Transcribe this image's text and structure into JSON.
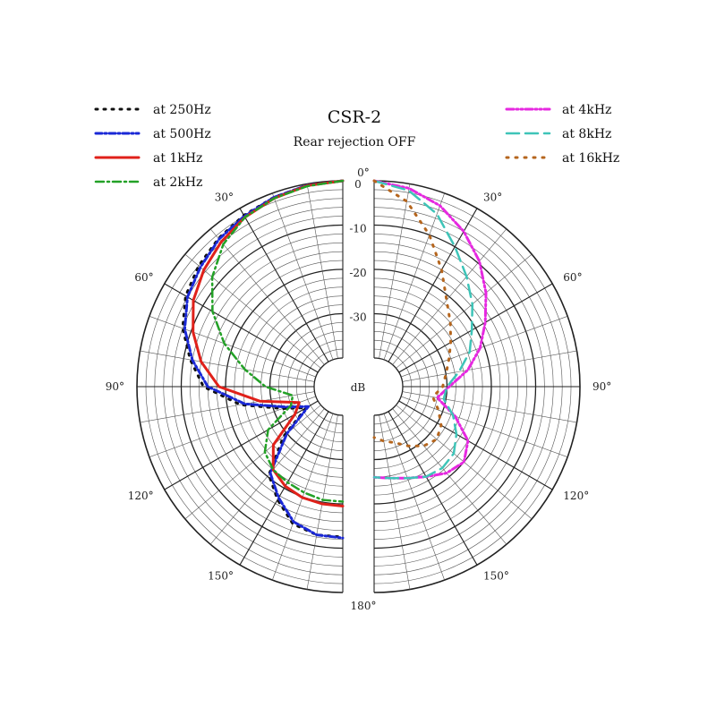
{
  "chart_data": {
    "type": "polar-line",
    "title": "CSR-2",
    "subtitle": "Rear rejection OFF",
    "radial_unit_label": "dB",
    "radial_range": [
      -40,
      0
    ],
    "radial_ticks": [
      {
        "value": 0,
        "label": "0"
      },
      {
        "value": -10,
        "label": "-10"
      },
      {
        "value": -20,
        "label": "-20"
      },
      {
        "value": -30,
        "label": "-30"
      }
    ],
    "angle_ticks": [
      {
        "angle": 0,
        "label": "0°",
        "side": "top"
      },
      {
        "angle": 30,
        "label": "30°",
        "side": "left"
      },
      {
        "angle": 60,
        "label": "60°",
        "side": "left"
      },
      {
        "angle": 90,
        "label": "90°",
        "side": "left"
      },
      {
        "angle": 120,
        "label": "120°",
        "side": "left"
      },
      {
        "angle": 150,
        "label": "150°",
        "side": "left"
      },
      {
        "angle": 180,
        "label": "180°",
        "side": "bottom"
      },
      {
        "angle": 30,
        "label": "30°",
        "side": "right"
      },
      {
        "angle": 60,
        "label": "60°",
        "side": "right"
      },
      {
        "angle": 90,
        "label": "90°",
        "side": "right"
      },
      {
        "angle": 120,
        "label": "120°",
        "side": "right"
      },
      {
        "angle": 150,
        "label": "150°",
        "side": "right"
      }
    ],
    "grid": true,
    "series": [
      {
        "name": "at 250Hz",
        "side": "left",
        "color": "#111111",
        "dash": "2 7",
        "width": 3,
        "angles": [
          0,
          10,
          20,
          30,
          40,
          50,
          60,
          70,
          80,
          90,
          100,
          110,
          120,
          130,
          140,
          150,
          160,
          170,
          180
        ],
        "values": [
          0,
          -0.3,
          -1,
          -1.8,
          -2.8,
          -4,
          -5.5,
          -8,
          -11.5,
          -15,
          -23,
          -32,
          -37,
          -29,
          -20.5,
          -17,
          -13.5,
          -12.5,
          -12.5
        ]
      },
      {
        "name": "at 500Hz",
        "side": "left",
        "color": "#1a28d6",
        "dash": "7 3 2 3",
        "width": 3,
        "angles": [
          0,
          10,
          20,
          30,
          40,
          50,
          60,
          70,
          80,
          90,
          100,
          110,
          120,
          130,
          140,
          150,
          160,
          170,
          180
        ],
        "values": [
          0,
          -0.3,
          -1,
          -2,
          -3,
          -4.5,
          -6,
          -8.5,
          -12,
          -16,
          -24,
          -33,
          -37.5,
          -30,
          -21,
          -17.5,
          -14,
          -12.5,
          -12.3
        ]
      },
      {
        "name": "at 1kHz",
        "side": "left",
        "color": "#e0211a",
        "dash": "",
        "width": 3,
        "angles": [
          0,
          10,
          20,
          30,
          40,
          50,
          60,
          70,
          80,
          90,
          100,
          110,
          120,
          130,
          140,
          150,
          160,
          170,
          180
        ],
        "values": [
          0,
          -0.4,
          -1.2,
          -2.3,
          -3.8,
          -5.5,
          -7.5,
          -10.5,
          -14,
          -18.5,
          -27.5,
          -36,
          -34,
          -26,
          -22,
          -20.5,
          -19.8,
          -19.6,
          -19.5
        ]
      },
      {
        "name": "at 2kHz",
        "side": "left",
        "color": "#23a127",
        "dash": "9 4 2 4",
        "width": 2.5,
        "angles": [
          0,
          10,
          20,
          30,
          40,
          50,
          60,
          70,
          80,
          90,
          100,
          110,
          120,
          130,
          140,
          150,
          160,
          170,
          180
        ],
        "values": [
          0,
          -0.5,
          -1.2,
          -2.3,
          -4.5,
          -8,
          -12.5,
          -18,
          -24,
          -29,
          -35,
          -34,
          -27,
          -23.5,
          -22,
          -21.5,
          -21,
          -20.5,
          -20.5
        ]
      },
      {
        "name": "at 4kHz",
        "side": "right",
        "color": "#e629e0",
        "dash": "8 3 2 3 2 3",
        "width": 3,
        "angles": [
          0,
          10,
          20,
          30,
          40,
          50,
          60,
          70,
          80,
          90,
          100,
          110,
          120,
          130,
          140,
          150,
          160,
          170,
          180
        ],
        "values": [
          0,
          -1,
          -3,
          -6,
          -9.5,
          -13.5,
          -17.5,
          -21,
          -25,
          -29.5,
          -32,
          -27,
          -22,
          -20,
          -21,
          -23,
          -24.5,
          -25.5,
          -26
        ]
      },
      {
        "name": "at 8kHz",
        "side": "right",
        "color": "#3ec4b8",
        "dash": "14 7",
        "width": 2.5,
        "angles": [
          0,
          10,
          20,
          30,
          40,
          50,
          60,
          70,
          80,
          90,
          100,
          110,
          120,
          130,
          140,
          150,
          160,
          170,
          180
        ],
        "values": [
          0,
          -1.5,
          -5,
          -10,
          -14,
          -17.5,
          -21,
          -23.5,
          -27,
          -30,
          -30.5,
          -27.5,
          -25,
          -23,
          -22.5,
          -23,
          -24.5,
          -25.5,
          -26
        ]
      },
      {
        "name": "at 16kHz",
        "side": "right",
        "color": "#b5651d",
        "dash": "2 8",
        "width": 3,
        "angles": [
          0,
          10,
          20,
          30,
          40,
          50,
          60,
          70,
          80,
          90,
          100,
          110,
          120,
          130,
          140,
          150,
          160,
          170,
          180
        ],
        "values": [
          0,
          -4,
          -10,
          -16,
          -21,
          -24,
          -26.5,
          -28.5,
          -30,
          -31,
          -33,
          -31,
          -29,
          -28,
          -29,
          -31,
          -33,
          -34,
          -35
        ]
      }
    ]
  }
}
